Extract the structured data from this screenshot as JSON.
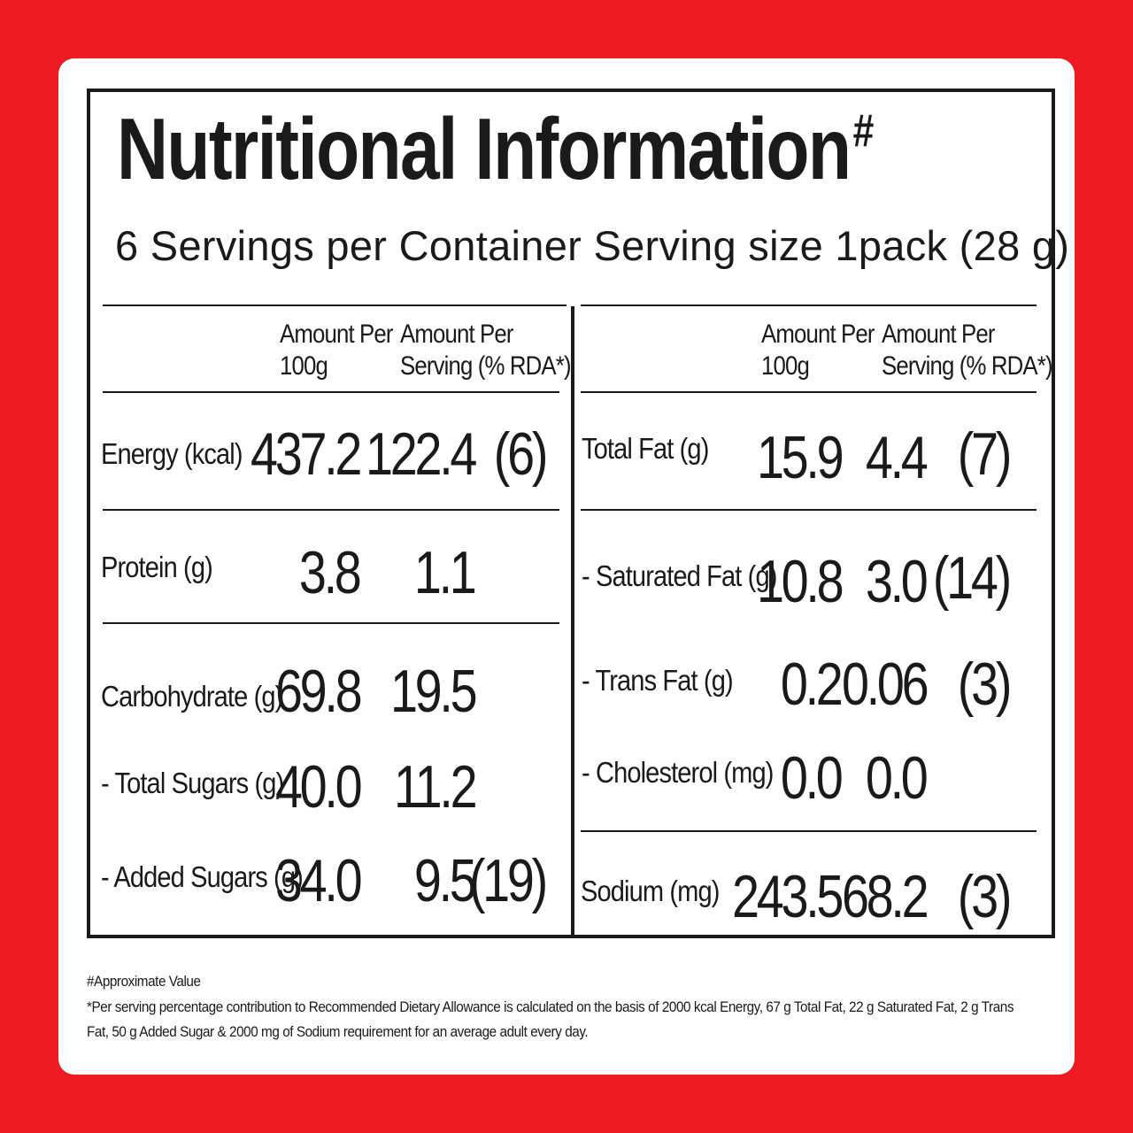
{
  "label": {
    "title": "Nutritional Information",
    "title_mark": "#",
    "subtitle": "6 Servings per Container Serving size 1pack (28 g)",
    "headers": {
      "per100_line1": "Amount Per",
      "per100_line2": "100g",
      "serving_line1": "Amount Per",
      "serving_line2": "Serving (% RDA*)"
    },
    "left": [
      {
        "name": "Energy (kcal)",
        "per100": "437.2",
        "serving": "122.4",
        "rda": "(6)"
      },
      {
        "name": "Protein (g)",
        "per100": "3.8",
        "serving": "1.1",
        "rda": ""
      },
      {
        "name": "Carbohydrate (g)",
        "per100": "69.8",
        "serving": "19.5",
        "rda": ""
      },
      {
        "name": "- Total Sugars (g)",
        "per100": "40.0",
        "serving": "11.2",
        "rda": ""
      },
      {
        "name": "- Added Sugars (g)",
        "per100": "34.0",
        "serving": "9.5",
        "rda": "(19)"
      }
    ],
    "right": [
      {
        "name": "Total Fat (g)",
        "per100": "15.9",
        "serving": "4.4",
        "rda": "(7)"
      },
      {
        "name": "- Saturated Fat (g)",
        "per100": "10.8",
        "serving": "3.0",
        "rda": "(14)"
      },
      {
        "name": "- Trans Fat (g)",
        "per100": "0.2",
        "serving": "0.06",
        "rda": "(3)"
      },
      {
        "name": "- Cholesterol (mg)",
        "per100": "0.0",
        "serving": "0.0",
        "rda": ""
      },
      {
        "name": "Sodium (mg)",
        "per100": "243.5",
        "serving": "68.2",
        "rda": "(3)"
      }
    ]
  },
  "footnotes": {
    "line1": "#Approximate Value",
    "line2": "*Per serving percentage contribution to Recommended Dietary Allowance is calculated on the basis of 2000 kcal Energy, 67 g Total Fat, 22 g Saturated Fat, 2 g Trans",
    "line3": "Fat, 50 g Added Sugar & 2000 mg of Sodium requirement for an average adult every day."
  },
  "colors": {
    "background": "#ec1c24",
    "card": "#ffffff",
    "ink": "#1a1a1a"
  }
}
